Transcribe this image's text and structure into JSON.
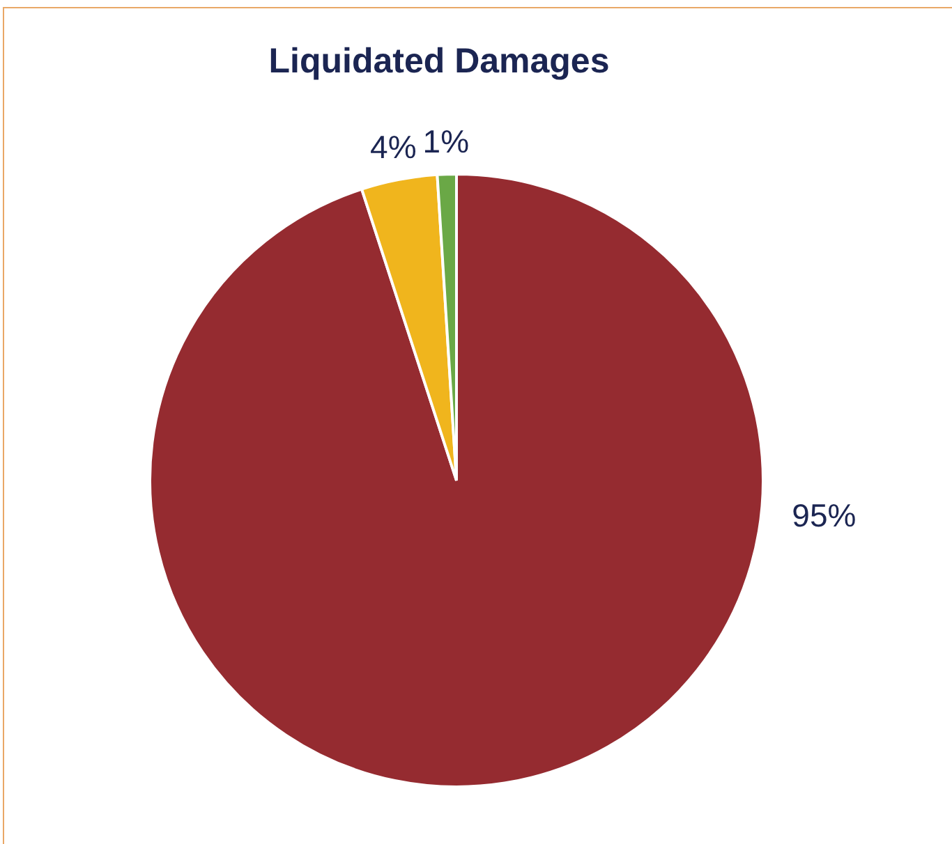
{
  "chart_data": {
    "type": "pie",
    "title": "Liquidated Damages",
    "categories": [
      null,
      null,
      null
    ],
    "values": [
      95,
      4,
      1
    ],
    "colors": [
      "#952b30",
      "#f0b51d",
      "#6aa846"
    ],
    "value_labels": [
      "95%",
      "4%",
      "1%"
    ],
    "legend": false
  }
}
